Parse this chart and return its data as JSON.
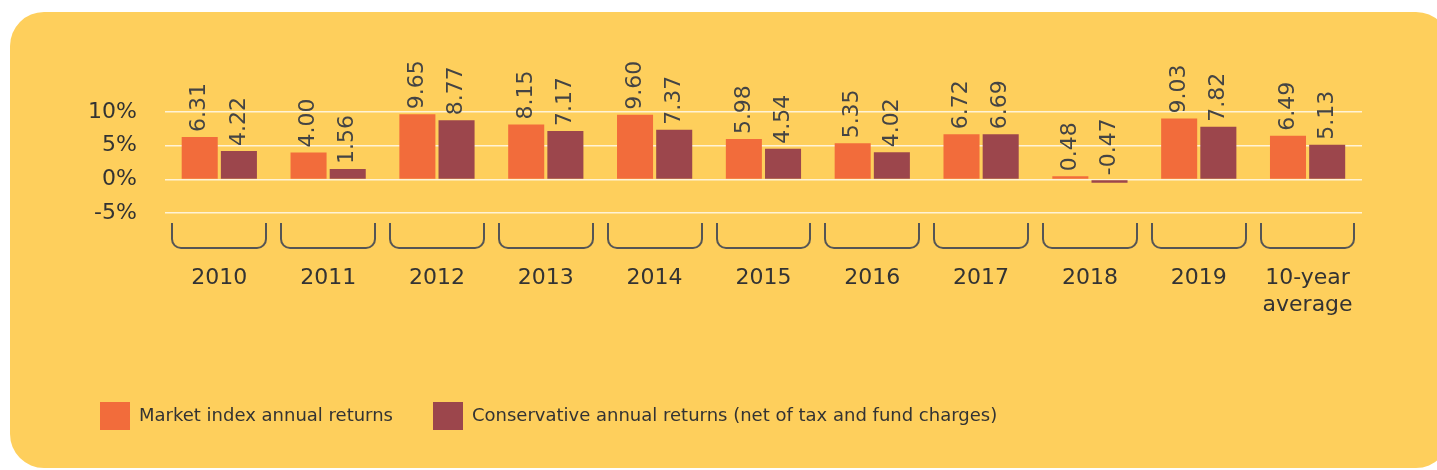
{
  "chart_data": {
    "type": "bar",
    "categories": [
      "2010",
      "2011",
      "2012",
      "2013",
      "2014",
      "2015",
      "2016",
      "2017",
      "2018",
      "2019",
      "10-year average"
    ],
    "series": [
      {
        "name": "Market index annual returns",
        "color": "#f26c3b",
        "values": [
          6.31,
          4.0,
          9.65,
          8.15,
          9.6,
          5.98,
          5.35,
          6.72,
          0.48,
          9.03,
          6.49
        ],
        "value_labels": [
          "6.31",
          "4.00",
          "9.65",
          "8.15",
          "9.60",
          "5.98",
          "5.35",
          "6.72",
          "0.48",
          "9.03",
          "6.49"
        ]
      },
      {
        "name": "Conservative annual returns (net of tax and fund charges)",
        "color": "#9c464c",
        "values": [
          4.22,
          1.56,
          8.77,
          7.17,
          7.37,
          4.54,
          4.02,
          6.69,
          -0.47,
          7.82,
          5.13
        ],
        "value_labels": [
          "4.22",
          "1.56",
          "8.77",
          "7.17",
          "7.37",
          "4.54",
          "4.02",
          "6.69",
          "-0.47",
          "7.82",
          "5.13"
        ]
      }
    ],
    "ylim": [
      -5,
      10
    ],
    "yticks": [
      {
        "value": -5,
        "label": "-5%"
      },
      {
        "value": 0,
        "label": "0%"
      },
      {
        "value": 5,
        "label": "5%"
      },
      {
        "value": 10,
        "label": "10%"
      }
    ],
    "grid": "y",
    "legend": "bottom"
  }
}
